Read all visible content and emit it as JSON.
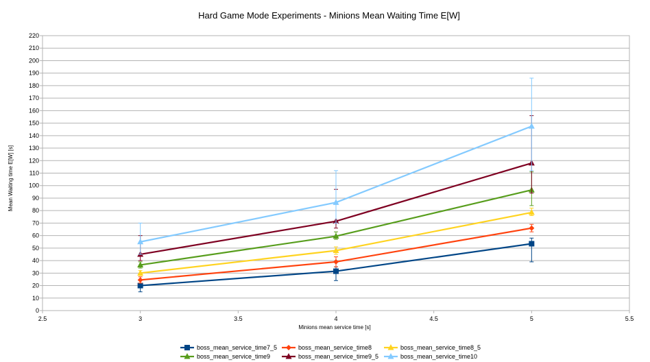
{
  "chart_data": {
    "type": "line",
    "title": "Hard Game Mode Experiments - Minions Mean Waiting Time E[W]",
    "xlabel": "Minions mean service time [s]",
    "ylabel": "Mean Waiting time E[W] [s]",
    "xlim": [
      2.5,
      5.5
    ],
    "ylim": [
      0,
      220
    ],
    "xticks": [
      2.5,
      3,
      3.5,
      4,
      4.5,
      5,
      5.5
    ],
    "xtick_labels": [
      "2.5",
      "3",
      "3.5",
      "4",
      "4.5",
      "5",
      "5.5"
    ],
    "yticks": [
      0,
      10,
      20,
      30,
      40,
      50,
      60,
      70,
      80,
      90,
      100,
      110,
      120,
      130,
      140,
      150,
      160,
      170,
      180,
      190,
      200,
      210,
      220
    ],
    "ytick_labels": [
      "0",
      "10",
      "20",
      "30",
      "40",
      "50",
      "60",
      "70",
      "80",
      "90",
      "100",
      "110",
      "120",
      "130",
      "140",
      "150",
      "160",
      "170",
      "180",
      "190",
      "200",
      "210",
      "220"
    ],
    "grid": true,
    "legend_position": "bottom",
    "x": [
      3,
      4,
      5
    ],
    "series": [
      {
        "name": "boss_mean_service_time7_5",
        "color": "#004586",
        "marker": "square",
        "values": [
          20,
          31.5,
          53.5
        ],
        "err_low": [
          15,
          24,
          39
        ],
        "err_high": [
          22,
          35,
          58
        ]
      },
      {
        "name": "boss_mean_service_time8",
        "color": "#ff420e",
        "marker": "diamond",
        "values": [
          24.5,
          39,
          66
        ],
        "err_low": [
          22,
          35,
          63
        ],
        "err_high": [
          27,
          43,
          69
        ]
      },
      {
        "name": "boss_mean_service_time8_5",
        "color": "#ffd320",
        "marker": "triangle",
        "values": [
          30,
          48,
          78.5
        ],
        "err_low": [
          28,
          45,
          76
        ],
        "err_high": [
          32,
          51,
          82
        ]
      },
      {
        "name": "boss_mean_service_time9",
        "color": "#579d1c",
        "marker": "triangle",
        "values": [
          36.5,
          59.5,
          96.5
        ],
        "err_low": [
          34,
          57,
          84
        ],
        "err_high": [
          39,
          63,
          111
        ]
      },
      {
        "name": "boss_mean_service_time9_5",
        "color": "#7e0021",
        "marker": "triangle",
        "values": [
          45,
          71.5,
          118
        ],
        "err_low": [
          40,
          66,
          94
        ],
        "err_high": [
          60,
          97,
          156
        ]
      },
      {
        "name": "boss_mean_service_time10",
        "color": "#83caff",
        "marker": "triangle",
        "values": [
          55,
          86.5,
          147.5
        ],
        "err_low": [
          45,
          70,
          112
        ],
        "err_high": [
          70,
          112,
          186
        ]
      }
    ]
  }
}
